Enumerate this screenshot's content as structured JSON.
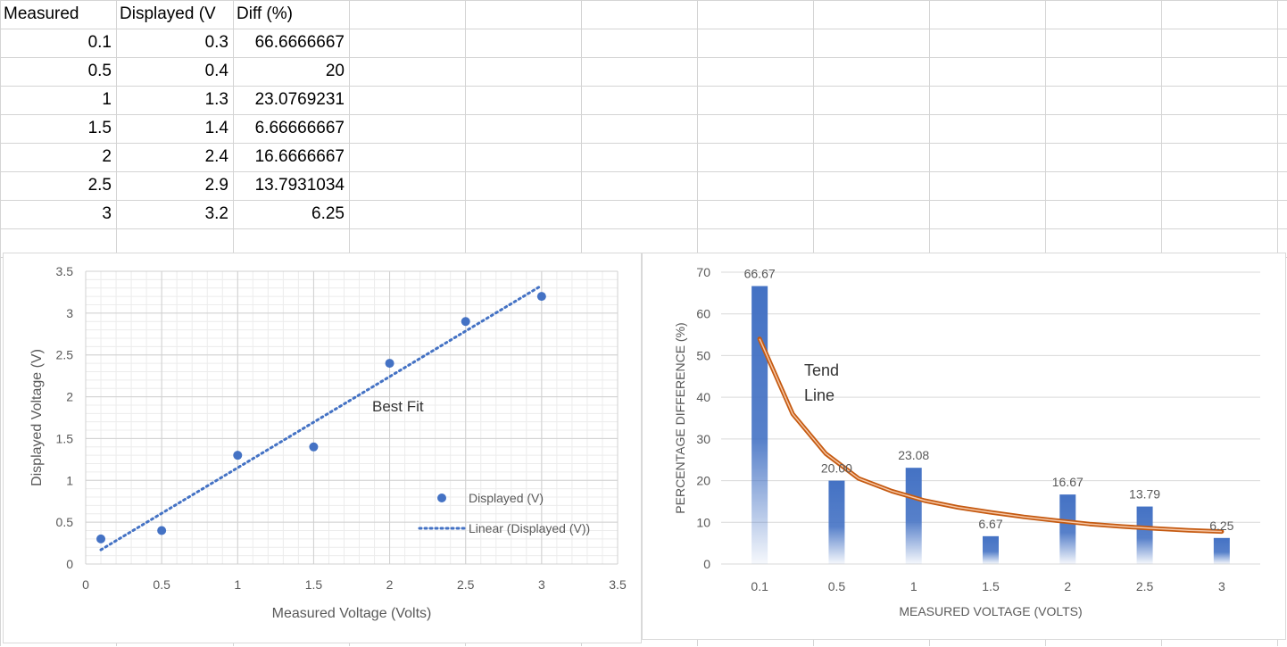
{
  "sheet": {
    "headers": [
      "Measured",
      "Displayed (V",
      "Diff (%)"
    ],
    "rows": [
      [
        "0.1",
        "0.3",
        "66.6666667"
      ],
      [
        "0.5",
        "0.4",
        "20"
      ],
      [
        "1",
        "1.3",
        "23.0769231"
      ],
      [
        "1.5",
        "1.4",
        "6.66666667"
      ],
      [
        "2",
        "2.4",
        "16.6666667"
      ],
      [
        "2.5",
        "2.9",
        "13.7931034"
      ],
      [
        "3",
        "3.2",
        "6.25"
      ]
    ]
  },
  "chart_data": [
    {
      "type": "scatter",
      "xlabel": "Measured Voltage (Volts)",
      "ylabel": "Displayed Voltage (V)",
      "xlim": [
        0,
        3.5
      ],
      "ylim": [
        0,
        3.5
      ],
      "x_ticks": [
        "0",
        "0.5",
        "1",
        "1.5",
        "2",
        "2.5",
        "3",
        "3.5"
      ],
      "y_ticks": [
        "0",
        "0.5",
        "1",
        "1.5",
        "2",
        "2.5",
        "3",
        "3.5"
      ],
      "grid": true,
      "series": [
        {
          "name": "Displayed (V)",
          "x": [
            0.1,
            0.5,
            1,
            1.5,
            2,
            2.5,
            3
          ],
          "y": [
            0.3,
            0.4,
            1.3,
            1.4,
            2.4,
            2.9,
            3.2
          ],
          "color": "#4472c4"
        }
      ],
      "trendline": {
        "name": "Linear (Displayed (V))",
        "x": [
          0.1,
          3.0
        ],
        "y": [
          0.17,
          3.33
        ],
        "style": "dotted",
        "color": "#4472c4"
      },
      "annotation": "Best Fit",
      "legend": "bottom-right"
    },
    {
      "type": "bar",
      "xlabel": "MEASURED VOLTAGE (VOLTS)",
      "ylabel": "PERCENTAGE DIFFERENCE (%)",
      "ylim": [
        0,
        70
      ],
      "y_ticks": [
        "0",
        "10",
        "20",
        "30",
        "40",
        "50",
        "60",
        "70"
      ],
      "categories": [
        "0.1",
        "0.5",
        "1",
        "1.5",
        "2",
        "2.5",
        "3"
      ],
      "values": [
        66.67,
        20.0,
        23.08,
        6.67,
        16.67,
        13.79,
        6.25
      ],
      "data_labels": [
        "66.67",
        "20.00",
        "23.08",
        "6.67",
        "16.67",
        "13.79",
        "6.25"
      ],
      "bar_color": "#4472c4",
      "trend_color": "#c55a11",
      "trend_values": [
        54,
        36,
        26.5,
        20.5,
        17.5,
        15.2,
        13.6,
        12.4,
        11.3,
        10.4,
        9.6,
        9.0,
        8.5,
        8.1,
        7.8
      ],
      "annotation": [
        "Tend",
        "Line"
      ],
      "grid": true
    }
  ]
}
